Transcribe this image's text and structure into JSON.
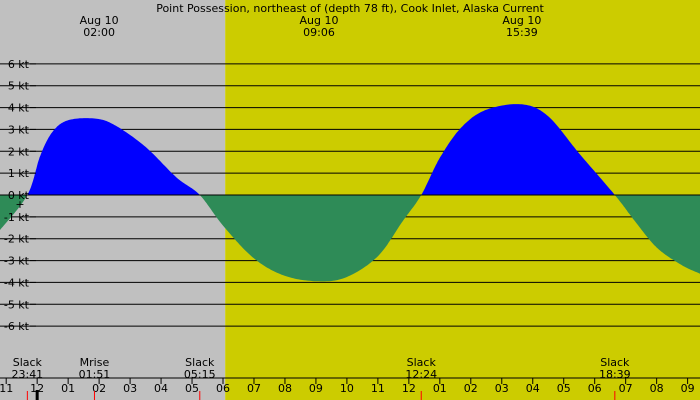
{
  "chart_data": {
    "type": "area",
    "title": "Point Possession, northeast of (depth 78 ft), Cook Inlet, Alaska Current",
    "ylabel": "",
    "xlabel": "",
    "y_unit": "kt",
    "ylim": [
      -7,
      7
    ],
    "y_ticks": [
      "6 kt",
      "5 kt",
      "4 kt",
      "3 kt",
      "2 kt",
      "1 kt",
      "0 kt",
      "-1 kt",
      "-2 kt",
      "-3 kt",
      "-4 kt",
      "-5 kt",
      "-6 kt"
    ],
    "y_tick_values": [
      6,
      5,
      4,
      3,
      2,
      1,
      0,
      -1,
      -2,
      -3,
      -4,
      -5,
      -6
    ],
    "x_range_hours": [
      -13.2,
      9.4
    ],
    "hour_ticks": [
      {
        "h": -13,
        "label": "11"
      },
      {
        "h": -12,
        "label": "12"
      },
      {
        "h": -11,
        "label": "01"
      },
      {
        "h": -10,
        "label": "02"
      },
      {
        "h": -9,
        "label": "03"
      },
      {
        "h": -8,
        "label": "04"
      },
      {
        "h": -7,
        "label": "05"
      },
      {
        "h": -6,
        "label": "06"
      },
      {
        "h": -5,
        "label": "07"
      },
      {
        "h": -4,
        "label": "08"
      },
      {
        "h": -3,
        "label": "09"
      },
      {
        "h": -2,
        "label": "10"
      },
      {
        "h": -1,
        "label": "11"
      },
      {
        "h": 0,
        "label": "12"
      },
      {
        "h": 1,
        "label": "01"
      },
      {
        "h": 2,
        "label": "02"
      },
      {
        "h": 3,
        "label": "03"
      },
      {
        "h": 4,
        "label": "04"
      },
      {
        "h": 5,
        "label": "05"
      },
      {
        "h": 6,
        "label": "06"
      },
      {
        "h": 7,
        "label": "07"
      },
      {
        "h": 8,
        "label": "08"
      },
      {
        "h": 9,
        "label": "09"
      }
    ],
    "night_until_hours": -5.93,
    "curve_points": [
      [
        -13.2,
        -1.6
      ],
      [
        -12.317,
        0
      ],
      [
        -11.9,
        1.8
      ],
      [
        -11.5,
        2.9
      ],
      [
        -11.0,
        3.42
      ],
      [
        -10.15,
        3.5
      ],
      [
        -9.5,
        3.2
      ],
      [
        -8.5,
        2.2
      ],
      [
        -7.5,
        0.8
      ],
      [
        -6.75,
        0
      ],
      [
        -6.0,
        -1.4
      ],
      [
        -5.0,
        -2.9
      ],
      [
        -4.0,
        -3.7
      ],
      [
        -2.9,
        -3.95
      ],
      [
        -2.0,
        -3.75
      ],
      [
        -1.0,
        -2.8
      ],
      [
        -0.2,
        -1.2
      ],
      [
        0.4,
        0
      ],
      [
        1.0,
        1.7
      ],
      [
        1.7,
        3.1
      ],
      [
        2.5,
        3.9
      ],
      [
        3.65,
        4.15
      ],
      [
        4.5,
        3.6
      ],
      [
        5.5,
        1.9
      ],
      [
        6.65,
        0
      ],
      [
        7.3,
        -1.2
      ],
      [
        8.0,
        -2.4
      ],
      [
        8.8,
        -3.2
      ],
      [
        9.4,
        -3.6
      ]
    ],
    "series": [
      {
        "name": "",
        "color_flood": "#0000ff",
        "color_ebb": "#2e8b57"
      }
    ],
    "top_annotations": [
      {
        "h": -10.0,
        "date": "Aug 10",
        "time": "02:00"
      },
      {
        "h": -2.9,
        "date": "Aug 10",
        "time": "09:06"
      },
      {
        "h": 3.65,
        "date": "Aug 10",
        "time": "15:39"
      }
    ],
    "bottom_events": [
      {
        "h": -12.317,
        "name": "Slack",
        "time": "23:41",
        "marker": "#ff0000"
      },
      {
        "h": -10.15,
        "name": "Mrise",
        "time": "01:51",
        "marker": "#ff0000"
      },
      {
        "h": -6.75,
        "name": "Slack",
        "time": "05:15",
        "marker": "#ff0000"
      },
      {
        "h": 0.4,
        "name": "Slack",
        "time": "12:24",
        "marker": "#ff0000"
      },
      {
        "h": 6.65,
        "name": "Slack",
        "time": "18:39",
        "marker": "#ff0000"
      }
    ],
    "current_time_hour": -12.0,
    "grid": true,
    "colors": {
      "night": "#c0c0c0",
      "day": "#cccc00",
      "grid": "#000000"
    }
  }
}
